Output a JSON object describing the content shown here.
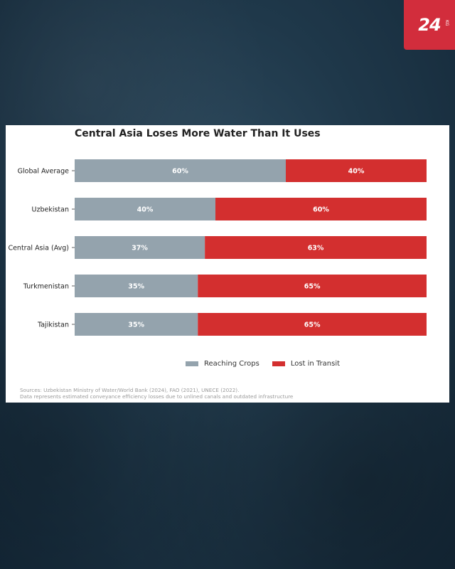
{
  "brand": {
    "logo_text": "24",
    "logo_sub": "KG",
    "color": "#d22d3c"
  },
  "chart_data": {
    "type": "bar",
    "orientation": "horizontal",
    "stacked": true,
    "title": "Central Asia Loses More Water Than It Uses",
    "categories": [
      "Global Average",
      "Uzbekistan",
      "Central Asia (Avg)",
      "Turkmenistan",
      "Tajikistan"
    ],
    "series": [
      {
        "name": "Reaching Crops",
        "color": "#94a3ad",
        "values": [
          60,
          40,
          37,
          35,
          35
        ],
        "labels": [
          "60%",
          "40%",
          "37%",
          "35%",
          "35%"
        ]
      },
      {
        "name": "Lost in Transit",
        "color": "#d32f2f",
        "values": [
          40,
          60,
          63,
          65,
          65
        ],
        "labels": [
          "40%",
          "60%",
          "63%",
          "65%",
          "65%"
        ]
      }
    ],
    "xlim": [
      0,
      100
    ],
    "grid": false,
    "legend_position": "bottom-center",
    "sources": [
      "Sources: Uzbekistan Ministry of Water/World Bank (2024), FAO (2021), UNECE (2022).",
      "Data represents estimated conveyance efficiency losses due to unlined canals and outdated infrastructure"
    ]
  }
}
